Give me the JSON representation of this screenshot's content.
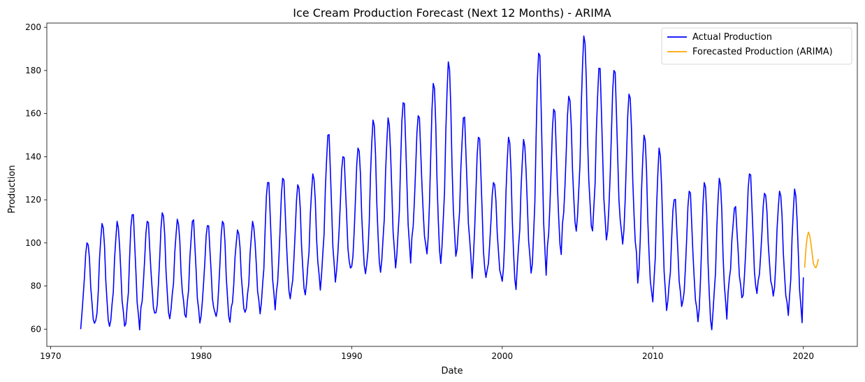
{
  "chart_data": {
    "type": "line",
    "title": "Ice Cream Production Forecast (Next 12 Months) - ARIMA",
    "xlabel": "Date",
    "ylabel": "Production",
    "x_axis_type": "date",
    "xlim": [
      "1969-10-01",
      "2023-08-01"
    ],
    "ylim": [
      52,
      202
    ],
    "x_ticks": [
      "1970",
      "1980",
      "1990",
      "2000",
      "2010",
      "2020"
    ],
    "y_ticks": [
      "60",
      "80",
      "100",
      "120",
      "140",
      "160",
      "180",
      "200"
    ],
    "grid": false,
    "legend_position": "top-right",
    "series": [
      {
        "name": "Actual Production",
        "color": "#0000ff",
        "start": "1972-01",
        "frequency": "monthly",
        "seasonal_profile": [
          -18,
          -13,
          -6,
          6,
          16,
          22,
          21,
          12,
          0,
          -10,
          -16,
          -20
        ],
        "annual_levels": [
          [
            1972,
            80
          ],
          [
            1973,
            84
          ],
          [
            1974,
            85
          ],
          [
            1975,
            86
          ],
          [
            1976,
            87
          ],
          [
            1977,
            88
          ],
          [
            1978,
            88
          ],
          [
            1979,
            86
          ],
          [
            1980,
            86
          ],
          [
            1981,
            85
          ],
          [
            1982,
            86
          ],
          [
            1983,
            88
          ],
          [
            1984,
            98
          ],
          [
            1985,
            100
          ],
          [
            1986,
            100
          ],
          [
            1987,
            104
          ],
          [
            1988,
            115
          ],
          [
            1989,
            112
          ],
          [
            1990,
            113
          ],
          [
            1991,
            120
          ],
          [
            1992,
            122
          ],
          [
            1993,
            127
          ],
          [
            1994,
            127
          ],
          [
            1995,
            130
          ],
          [
            1996,
            137
          ],
          [
            1997,
            125
          ],
          [
            1998,
            114
          ],
          [
            1999,
            105
          ],
          [
            2000,
            112
          ],
          [
            2001,
            116
          ],
          [
            2002,
            135
          ],
          [
            2003,
            126
          ],
          [
            2004,
            135
          ],
          [
            2005,
            150
          ],
          [
            2006,
            140
          ],
          [
            2007,
            140
          ],
          [
            2008,
            130
          ],
          [
            2009,
            112
          ],
          [
            2010,
            105
          ],
          [
            2011,
            95
          ],
          [
            2012,
            95
          ],
          [
            2013,
            92
          ],
          [
            2014,
            96
          ],
          [
            2015,
            95
          ],
          [
            2016,
            102
          ],
          [
            2017,
            100
          ],
          [
            2018,
            97
          ],
          [
            2019,
            93
          ]
        ],
        "annual_peaks": [
          [
            1972,
            100
          ],
          [
            1973,
            109
          ],
          [
            1974,
            110
          ],
          [
            1975,
            113
          ],
          [
            1976,
            110
          ],
          [
            1977,
            114
          ],
          [
            1978,
            111
          ],
          [
            1979,
            110
          ],
          [
            1980,
            108
          ],
          [
            1981,
            110
          ],
          [
            1982,
            106
          ],
          [
            1983,
            110
          ],
          [
            1984,
            128
          ],
          [
            1985,
            130
          ],
          [
            1986,
            127
          ],
          [
            1987,
            132
          ],
          [
            1988,
            150
          ],
          [
            1989,
            140
          ],
          [
            1990,
            144
          ],
          [
            1991,
            157
          ],
          [
            1992,
            158
          ],
          [
            1993,
            165
          ],
          [
            1994,
            159
          ],
          [
            1995,
            174
          ],
          [
            1996,
            184
          ],
          [
            1997,
            158
          ],
          [
            1998,
            149
          ],
          [
            1999,
            128
          ],
          [
            2000,
            149
          ],
          [
            2001,
            148
          ],
          [
            2002,
            188
          ],
          [
            2003,
            162
          ],
          [
            2004,
            168
          ],
          [
            2005,
            196
          ],
          [
            2006,
            181
          ],
          [
            2007,
            180
          ],
          [
            2008,
            169
          ],
          [
            2009,
            150
          ],
          [
            2010,
            144
          ],
          [
            2011,
            120
          ],
          [
            2012,
            124
          ],
          [
            2013,
            128
          ],
          [
            2014,
            130
          ],
          [
            2015,
            116
          ],
          [
            2016,
            132
          ],
          [
            2017,
            123
          ],
          [
            2018,
            124
          ],
          [
            2019,
            125
          ]
        ],
        "first_point": [
          "1972-01",
          60
        ],
        "last_point": [
          "2020-01",
          84
        ]
      },
      {
        "name": "Forecasted Production (ARIMA)",
        "color": "#ffa500",
        "x": [
          "2020-02",
          "2020-03",
          "2020-04",
          "2020-05",
          "2020-06",
          "2020-07",
          "2020-08",
          "2020-09",
          "2020-10",
          "2020-11",
          "2020-12",
          "2021-01"
        ],
        "values": [
          88.5,
          97.0,
          102.5,
          105.0,
          103.5,
          100.0,
          95.0,
          90.5,
          89.0,
          88.5,
          90.0,
          92.5
        ]
      }
    ]
  }
}
